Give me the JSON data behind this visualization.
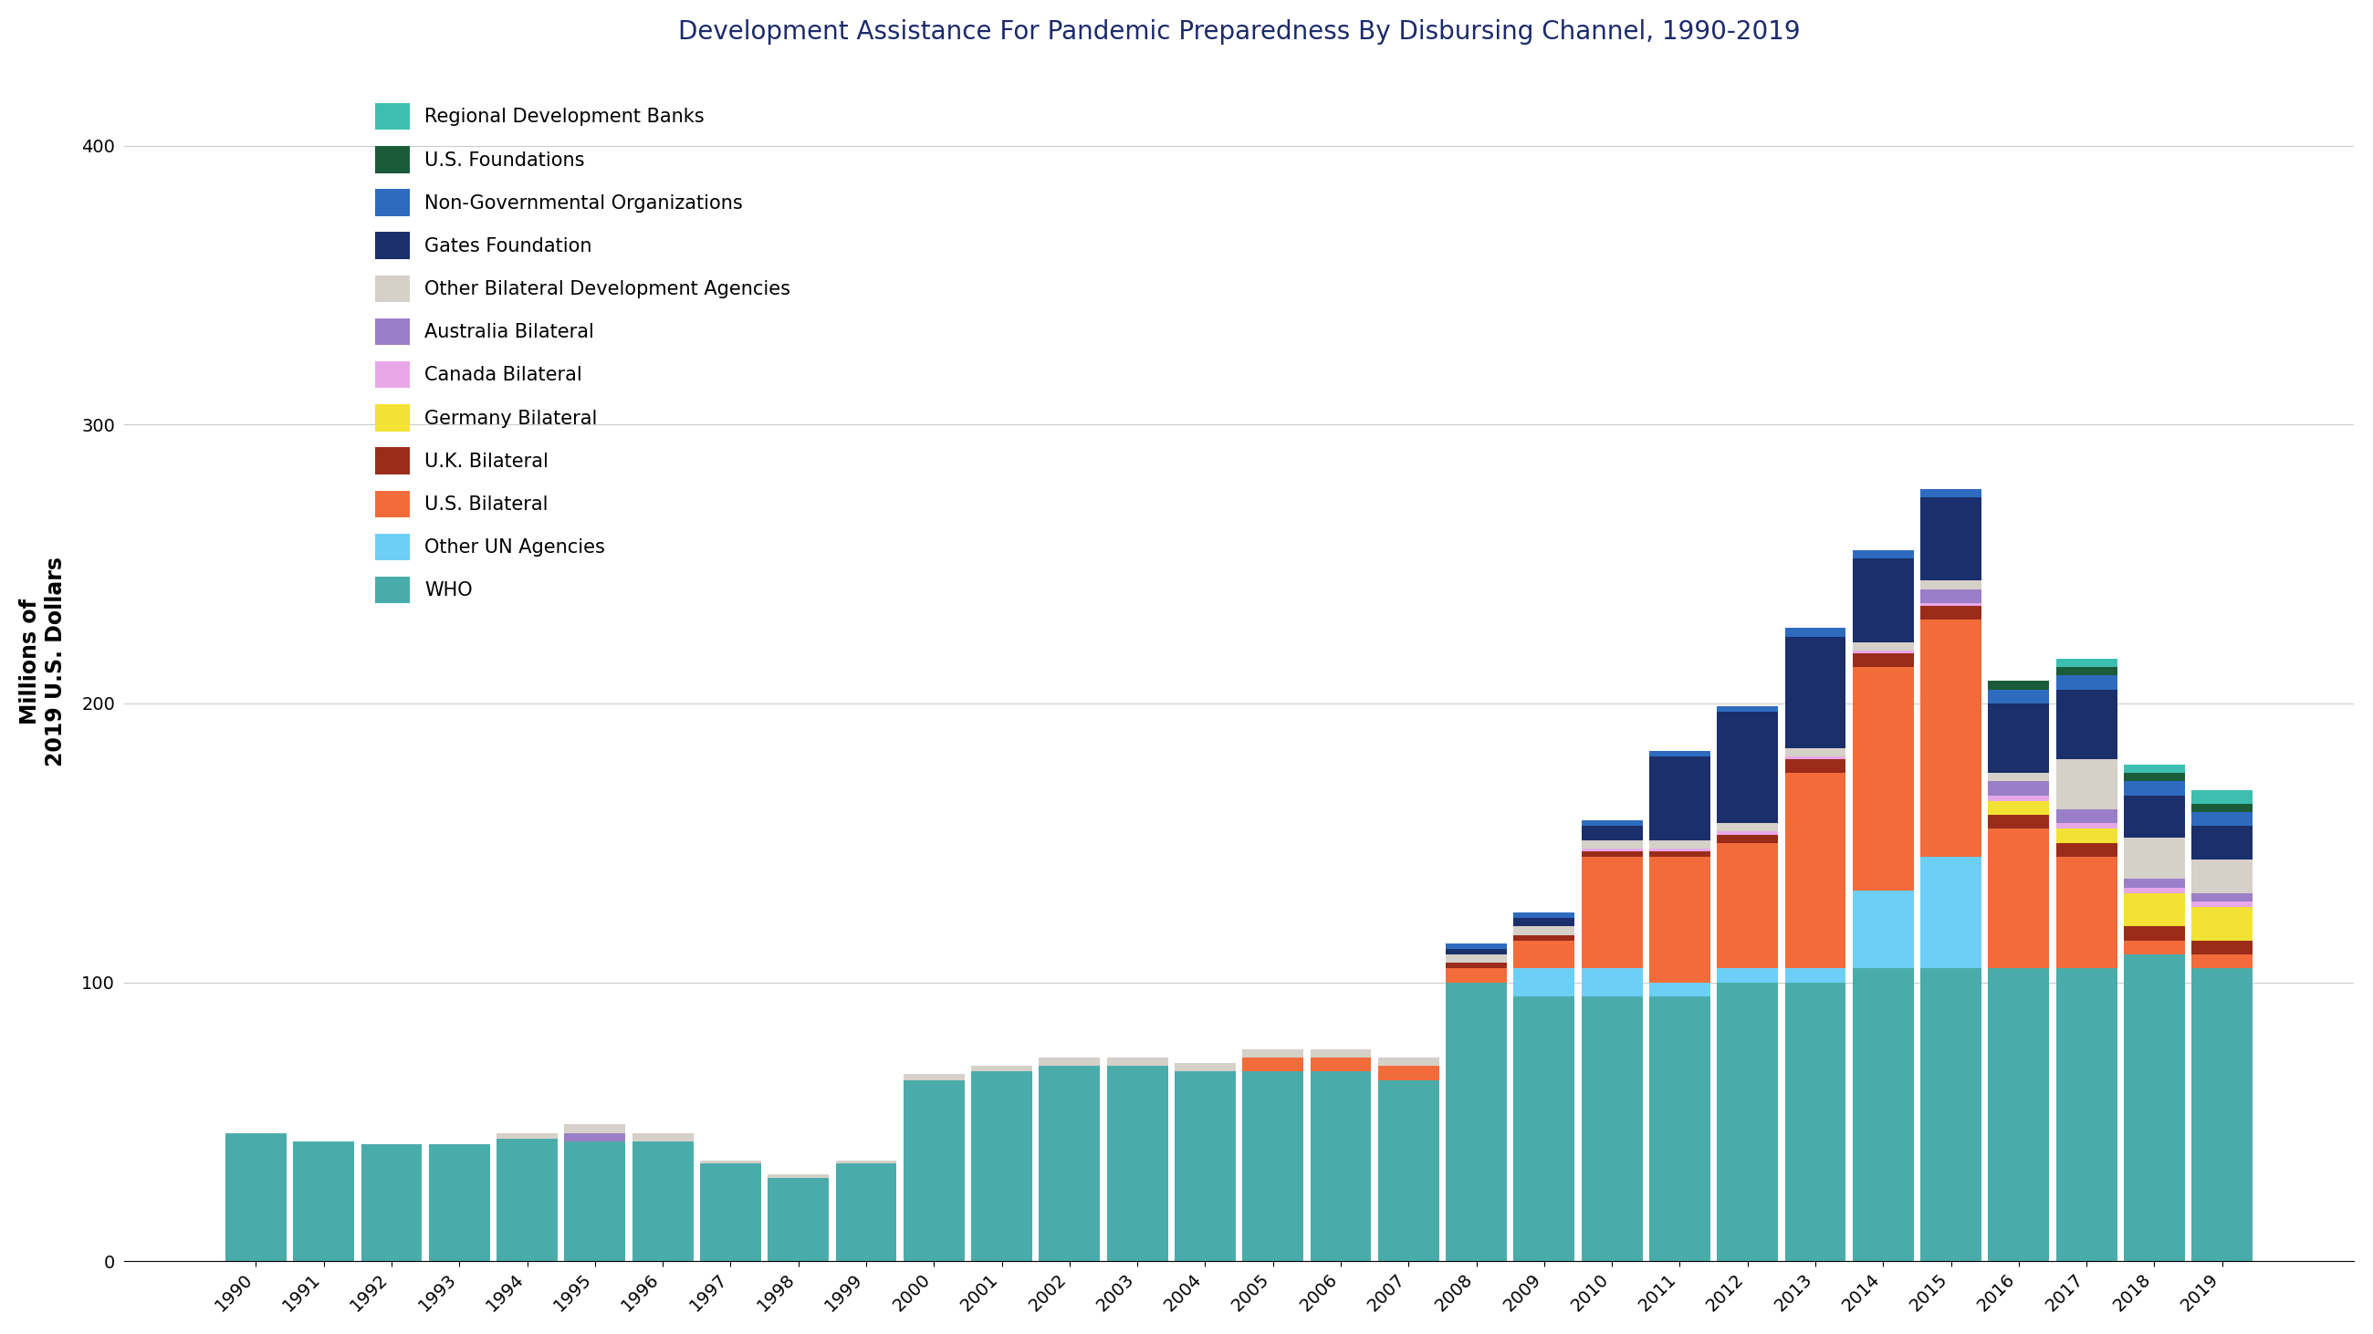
{
  "title": "Development Assistance For Pandemic Preparedness By Disbursing Channel, 1990-2019",
  "ylabel": "Millions of\n2019 U.S. Dollars",
  "years": [
    1990,
    1991,
    1992,
    1993,
    1994,
    1995,
    1996,
    1997,
    1998,
    1999,
    2000,
    2001,
    2002,
    2003,
    2004,
    2005,
    2006,
    2007,
    2008,
    2009,
    2010,
    2011,
    2012,
    2013,
    2014,
    2015,
    2016,
    2017,
    2018,
    2019
  ],
  "categories": [
    "WHO",
    "Other UN Agencies",
    "U.S. Bilateral",
    "U.K. Bilateral",
    "Germany Bilateral",
    "Canada Bilateral",
    "Australia Bilateral",
    "Other Bilateral Development Agencies",
    "Gates Foundation",
    "Non-Governmental Organizations",
    "U.S. Foundations",
    "Regional Development Banks"
  ],
  "colors": [
    "#4aacaa",
    "#6dcff6",
    "#f26c3b",
    "#9b2c1a",
    "#f2e234",
    "#e8a8e8",
    "#9b7ec8",
    "#d5d0c8",
    "#1a2f6b",
    "#2e6bbf",
    "#1a5c3a",
    "#3cbfb0"
  ],
  "data": {
    "WHO": [
      46,
      43,
      42,
      42,
      44,
      43,
      43,
      35,
      30,
      35,
      65,
      68,
      70,
      70,
      68,
      68,
      68,
      65,
      100,
      95,
      95,
      95,
      100,
      100,
      105,
      105,
      105,
      105,
      110,
      105
    ],
    "Other UN Agencies": [
      0,
      0,
      0,
      0,
      0,
      0,
      0,
      0,
      0,
      0,
      0,
      0,
      0,
      0,
      0,
      0,
      0,
      0,
      0,
      10,
      10,
      5,
      5,
      5,
      28,
      40,
      0,
      0,
      0,
      0
    ],
    "U.S. Bilateral": [
      0,
      0,
      0,
      0,
      0,
      0,
      0,
      0,
      0,
      0,
      0,
      0,
      0,
      0,
      0,
      5,
      5,
      5,
      5,
      10,
      40,
      45,
      45,
      70,
      80,
      85,
      50,
      40,
      5,
      5
    ],
    "U.K. Bilateral": [
      0,
      0,
      0,
      0,
      0,
      0,
      0,
      0,
      0,
      0,
      0,
      0,
      0,
      0,
      0,
      0,
      0,
      0,
      2,
      2,
      2,
      2,
      3,
      5,
      5,
      5,
      5,
      5,
      5,
      5
    ],
    "Germany Bilateral": [
      0,
      0,
      0,
      0,
      0,
      0,
      0,
      0,
      0,
      0,
      0,
      0,
      0,
      0,
      0,
      0,
      0,
      0,
      0,
      0,
      0,
      0,
      0,
      0,
      0,
      0,
      5,
      5,
      12,
      12
    ],
    "Canada Bilateral": [
      0,
      0,
      0,
      0,
      0,
      0,
      0,
      0,
      0,
      0,
      0,
      0,
      0,
      0,
      0,
      0,
      0,
      0,
      0,
      0,
      1,
      1,
      1,
      1,
      1,
      1,
      2,
      2,
      2,
      2
    ],
    "Australia Bilateral": [
      0,
      0,
      0,
      0,
      0,
      3,
      0,
      0,
      0,
      0,
      0,
      0,
      0,
      0,
      0,
      0,
      0,
      0,
      0,
      0,
      0,
      0,
      0,
      0,
      0,
      5,
      5,
      5,
      3,
      3
    ],
    "Other Bilateral Development Agencies": [
      0,
      0,
      0,
      0,
      2,
      3,
      3,
      1,
      1,
      1,
      2,
      2,
      3,
      3,
      3,
      3,
      3,
      3,
      3,
      3,
      3,
      3,
      3,
      3,
      3,
      3,
      3,
      18,
      15,
      12
    ],
    "Gates Foundation": [
      0,
      0,
      0,
      0,
      0,
      0,
      0,
      0,
      0,
      0,
      0,
      0,
      0,
      0,
      0,
      0,
      0,
      0,
      2,
      3,
      5,
      30,
      40,
      40,
      30,
      30,
      25,
      25,
      15,
      12
    ],
    "Non-Governmental Organizations": [
      0,
      0,
      0,
      0,
      0,
      0,
      0,
      0,
      0,
      0,
      0,
      0,
      0,
      0,
      0,
      0,
      0,
      0,
      2,
      2,
      2,
      2,
      2,
      3,
      3,
      3,
      5,
      5,
      5,
      5
    ],
    "U.S. Foundations": [
      0,
      0,
      0,
      0,
      0,
      0,
      0,
      0,
      0,
      0,
      0,
      0,
      0,
      0,
      0,
      0,
      0,
      0,
      0,
      0,
      0,
      0,
      0,
      0,
      0,
      0,
      3,
      3,
      3,
      3
    ],
    "Regional Development Banks": [
      0,
      0,
      0,
      0,
      0,
      0,
      0,
      0,
      0,
      0,
      0,
      0,
      0,
      0,
      0,
      0,
      0,
      0,
      0,
      0,
      0,
      0,
      0,
      0,
      0,
      0,
      0,
      3,
      3,
      5
    ]
  },
  "ylim": [
    0,
    430
  ],
  "yticks": [
    0,
    100,
    200,
    300,
    400
  ],
  "background_color": "#ffffff",
  "title_color": "#1b2a6b",
  "title_fontsize": 20,
  "axis_fontsize": 17,
  "legend_fontsize": 15,
  "tick_fontsize": 14
}
